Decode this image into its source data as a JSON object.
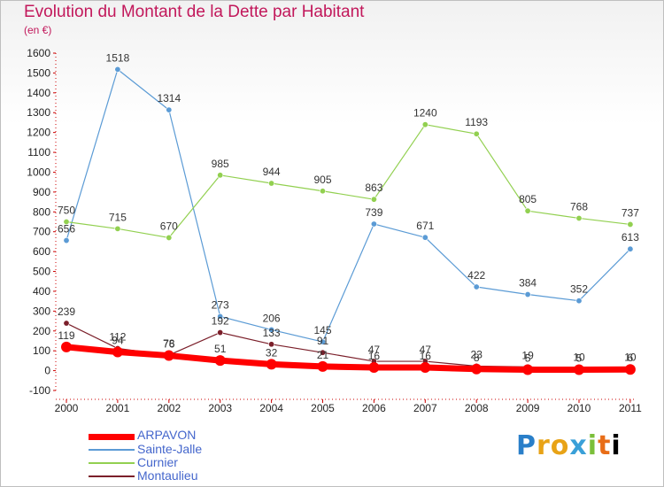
{
  "header": {
    "title": "Evolution du Montant de la Dette par Habitant",
    "subtitle": "(en €)"
  },
  "colors": {
    "title": "#c2185b",
    "ARPAVON": "#ff0000",
    "Sainte-Jalle": "#5b9bd5",
    "Curnier": "#92d050",
    "Montaulieu": "#7b1f2a",
    "axis": "#cc0000",
    "legend_text": "#4466cc"
  },
  "logo": {
    "text": "Proxiti"
  },
  "chart_data": {
    "type": "line",
    "title": "Evolution du Montant de la Dette par Habitant",
    "subtitle": "(en €)",
    "x": [
      "2000",
      "2001",
      "2002",
      "2003",
      "2004",
      "2005",
      "2006",
      "2007",
      "2008",
      "2009",
      "2010",
      "2011"
    ],
    "ylim": [
      -100,
      1600
    ],
    "yticks": [
      "-100",
      "0",
      "100",
      "200",
      "300",
      "400",
      "500",
      "600",
      "700",
      "800",
      "900",
      "1000",
      "1100",
      "1200",
      "1300",
      "1400",
      "1500",
      "1600"
    ],
    "grid": false,
    "legend_position": "bottom-left",
    "series": [
      {
        "name": "ARPAVON",
        "values": [
          119,
          94,
          76,
          51,
          32,
          21,
          16,
          16,
          8,
          5,
          5,
          6
        ],
        "labels": [
          "119",
          "94",
          "76",
          "51",
          "32",
          "21",
          "16",
          "16",
          "8",
          "5",
          "5",
          "6"
        ]
      },
      {
        "name": "Sainte-Jalle",
        "values": [
          656,
          1518,
          1314,
          273,
          206,
          145,
          739,
          671,
          422,
          384,
          352,
          613
        ],
        "labels": [
          "656",
          "1518",
          "1314",
          "273",
          "206",
          "145",
          "739",
          "671",
          "422",
          "384",
          "352",
          "613"
        ]
      },
      {
        "name": "Curnier",
        "values": [
          750,
          715,
          670,
          985,
          944,
          905,
          863,
          1240,
          1193,
          805,
          768,
          737
        ],
        "labels": [
          "750",
          "715",
          "670",
          "985",
          "944",
          "905",
          "863",
          "1240",
          "1193",
          "805",
          "768",
          "737"
        ]
      },
      {
        "name": "Montaulieu",
        "values": [
          239,
          112,
          78,
          192,
          133,
          91,
          47,
          47,
          23,
          19,
          10,
          10
        ],
        "labels": [
          "239",
          "112",
          "78",
          "192",
          "133",
          "91",
          "47",
          "47",
          "23",
          "19",
          "10",
          "10"
        ]
      }
    ]
  }
}
